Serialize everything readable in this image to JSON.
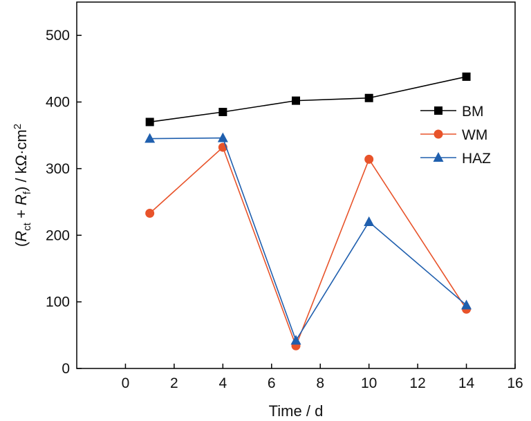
{
  "chart_data": {
    "type": "line",
    "x": [
      1,
      4,
      7,
      10,
      14
    ],
    "series": [
      {
        "name": "BM",
        "values": [
          370,
          385,
          402,
          406,
          438
        ],
        "color": "#000000",
        "marker": "square"
      },
      {
        "name": "WM",
        "values": [
          233,
          332,
          34,
          314,
          89
        ],
        "color": "#e8532a",
        "marker": "circle"
      },
      {
        "name": "HAZ",
        "values": [
          345,
          346,
          42,
          220,
          95
        ],
        "color": "#1f5fae",
        "marker": "triangle"
      }
    ],
    "xlabel": "Time / d",
    "ylabel": {
      "open": "(",
      "r1": "R",
      "r1_sub": "ct",
      "plus": " + ",
      "r2": "R",
      "r2_sub": "f",
      "unit": ") / kΩ·cm",
      "unit_sup": "2"
    },
    "xlim": [
      -2,
      16
    ],
    "ylim": [
      0,
      550
    ],
    "xticks": [
      0,
      2,
      4,
      6,
      8,
      10,
      12,
      14,
      16
    ],
    "yticks": [
      0,
      100,
      200,
      300,
      400,
      500
    ],
    "legend_position": "right",
    "grid": false
  }
}
